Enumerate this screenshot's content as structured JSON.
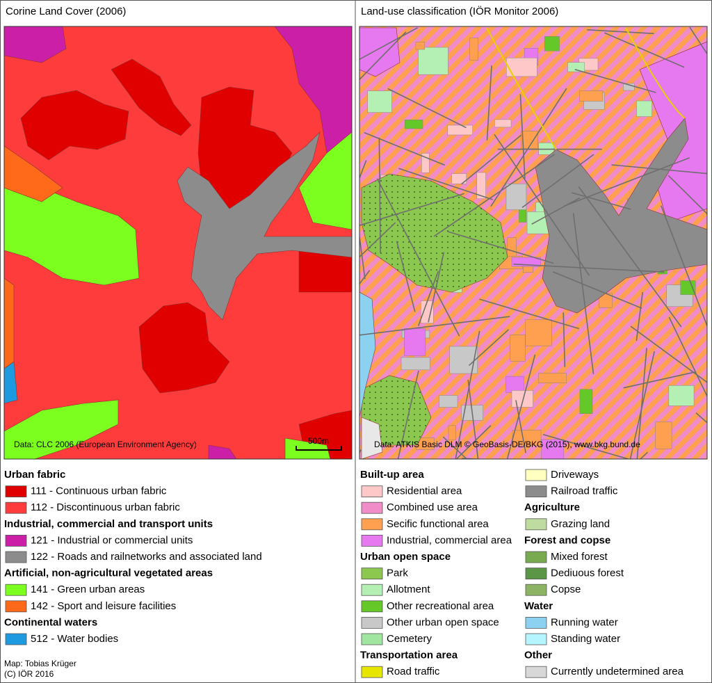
{
  "left_map": {
    "title": "Corine Land Cover (2006)",
    "source": "Data: CLC 2006 (European Environment Agency)",
    "scale_bar": "500m"
  },
  "right_map": {
    "title": "Land-use classification (IÖR Monitor 2006)",
    "source": "Data: ATKIS Basic DLM © GeoBasis-DE/BKG (2015), www.bkg.bund.de"
  },
  "left_legend": {
    "groups": [
      {
        "heading": "Urban fabric",
        "items": [
          {
            "label": "111 - Continuous urban fabric",
            "color": "#e00000"
          },
          {
            "label": "112 - Discontinuous urban fabric",
            "color": "#ff3c3c"
          }
        ]
      },
      {
        "heading": "Industrial, commercial and transport units",
        "items": [
          {
            "label": "121 - Industrial or commercial units",
            "color": "#cc1fa8"
          },
          {
            "label": "122 - Roads and railnetworks and associated land",
            "color": "#8c8c8c"
          }
        ]
      },
      {
        "heading": "Artificial, non-agricultural vegetated areas",
        "items": [
          {
            "label": "141 - Green urban areas",
            "color": "#7cff1f"
          },
          {
            "label": "142 - Sport and leisure facilities",
            "color": "#ff6a1a"
          }
        ]
      },
      {
        "heading": "Continental waters",
        "items": [
          {
            "label": "512 - Water bodies",
            "color": "#1e9be0"
          }
        ]
      }
    ]
  },
  "right_legend": {
    "columns": [
      [
        {
          "heading": "Built-up area",
          "items": [
            {
              "label": "Residential area",
              "color": "#ffc8c8"
            },
            {
              "label": "Combined use area",
              "color": "#f08cc8"
            },
            {
              "label": "Secific functional area",
              "color": "#ffa050"
            },
            {
              "label": "Industrial, commercial area",
              "color": "#e678f0"
            }
          ]
        },
        {
          "heading": "Urban open space",
          "items": [
            {
              "label": "Park",
              "color": "#8cc850"
            },
            {
              "label": "Allotment",
              "color": "#b4f0b4"
            },
            {
              "label": "Other recreational area",
              "color": "#64c828"
            },
            {
              "label": "Other urban open space",
              "color": "#c8c8c8"
            },
            {
              "label": "Cemetery",
              "color": "#a0e6a0"
            }
          ]
        },
        {
          "heading": "Transportation area",
          "items": [
            {
              "label": "Road traffic",
              "color": "#e6e600"
            }
          ]
        }
      ],
      [
        {
          "items": [
            {
              "label": "Driveways",
              "color": "#ffffc0"
            },
            {
              "label": "Railroad traffic",
              "color": "#8c8c8c"
            }
          ]
        },
        {
          "heading": "Agriculture",
          "items": [
            {
              "label": "Grazing land",
              "color": "#bedca0"
            }
          ]
        },
        {
          "heading": "Forest and copse",
          "items": [
            {
              "label": "Mixed forest",
              "color": "#78aa50"
            },
            {
              "label": "Dediuous forest",
              "color": "#5a9646"
            },
            {
              "label": "Copse",
              "color": "#8cb464"
            }
          ]
        },
        {
          "heading": "Water",
          "items": [
            {
              "label": "Running water",
              "color": "#8cd2f0"
            },
            {
              "label": "Standing water",
              "color": "#b4f5ff"
            }
          ]
        },
        {
          "heading": "Other",
          "items": [
            {
              "label": "Currently undetermined area",
              "color": "#d8d8d8"
            }
          ]
        }
      ]
    ]
  },
  "credits": [
    "Map: Tobias Krüger",
    "(C) IÖR 2016"
  ]
}
